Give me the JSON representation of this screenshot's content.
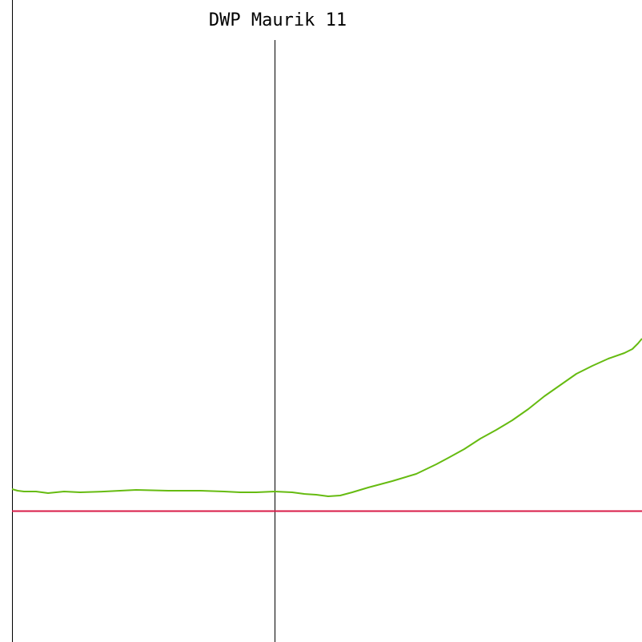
{
  "title": "DWP Maurik 11"
}
